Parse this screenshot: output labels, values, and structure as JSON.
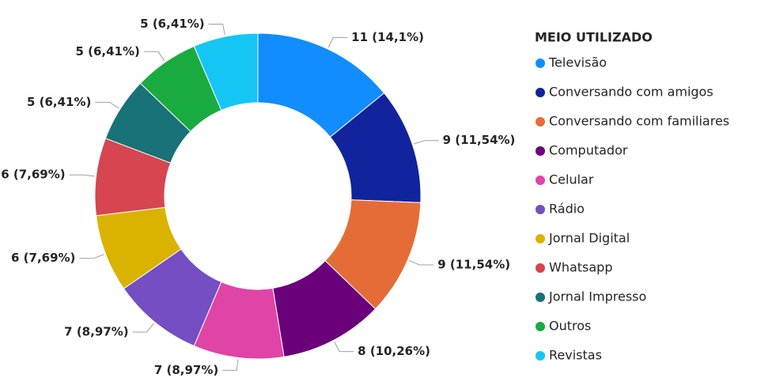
{
  "chart_data": {
    "type": "donut",
    "legend_title": "MEIO UTILIZADO",
    "legend": "right",
    "categories": [
      "Televisão",
      "Conversando com amigos",
      "Conversando com familiares",
      "Computador",
      "Celular",
      "Rádio",
      "Jornal Digital",
      "Whatsapp",
      "Jornal Impresso",
      "Outros",
      "Revistas"
    ],
    "values": [
      11,
      9,
      9,
      8,
      7,
      7,
      6,
      6,
      5,
      5,
      5
    ],
    "value_labels": [
      "11 (14,1%)",
      "9 (11,54%)",
      "9 (11,54%)",
      "8 (10,26%)",
      "7 (8,97%)",
      "7 (8,97%)",
      "6 (7,69%)",
      "6 (7,69%)",
      "5 (6,41%)",
      "5 (6,41%)",
      "5 (6,41%)"
    ],
    "colors": [
      "#118DFF",
      "#12239E",
      "#E66C37",
      "#6B007B",
      "#E044A7",
      "#744EC2",
      "#D9B300",
      "#D64550",
      "#197278",
      "#1AAB40",
      "#15C6F4"
    ]
  }
}
